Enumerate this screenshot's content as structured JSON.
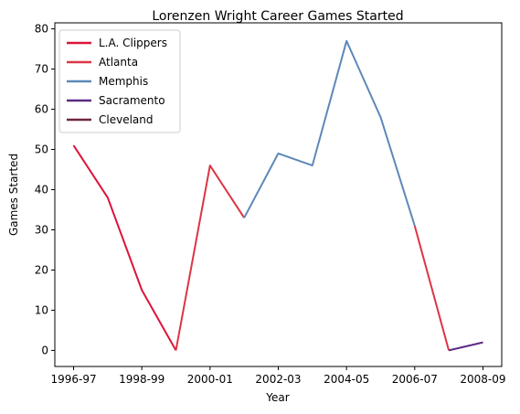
{
  "chart_data": {
    "type": "line",
    "title": "Lorenzen Wright Career Games Started",
    "xlabel": "Year",
    "ylabel": "Games Started",
    "x_ticks": [
      "1996-97",
      "1998-99",
      "2000-01",
      "2002-03",
      "2004-05",
      "2006-07",
      "2008-09"
    ],
    "y_ticks": [
      0,
      10,
      20,
      30,
      40,
      50,
      60,
      70,
      80
    ],
    "xlim": [
      "1996-97",
      "2008-09"
    ],
    "ylim": [
      0,
      80
    ],
    "legend_position": "upper-left",
    "grid": false,
    "series": [
      {
        "name": "L.A. Clippers",
        "color": "#dc143c",
        "points": [
          {
            "x": "1996-97",
            "y": 51
          },
          {
            "x": "1997-98",
            "y": 38
          },
          {
            "x": "1998-99",
            "y": 15
          },
          {
            "x": "1999-00",
            "y": 0
          }
        ]
      },
      {
        "name": "Atlanta",
        "color": "#dc3545",
        "points": [
          {
            "x": "1999-00",
            "y": 0
          },
          {
            "x": "2000-01",
            "y": 46
          },
          {
            "x": "2001-02",
            "y": 33
          }
        ]
      },
      {
        "name": "Memphis",
        "color": "#5e88b8",
        "points": [
          {
            "x": "2001-02",
            "y": 33
          },
          {
            "x": "2002-03",
            "y": 49
          },
          {
            "x": "2003-04",
            "y": 46
          },
          {
            "x": "2004-05",
            "y": 77
          },
          {
            "x": "2005-06",
            "y": 58
          },
          {
            "x": "2006-07",
            "y": 31
          }
        ]
      },
      {
        "name": "Atlanta",
        "color": "#dc3545",
        "in_legend": false,
        "points": [
          {
            "x": "2006-07",
            "y": 31
          },
          {
            "x": "2007-08",
            "y": 0
          }
        ]
      },
      {
        "name": "Sacramento",
        "color": "#5b2c83",
        "points": [
          {
            "x": "2007-08",
            "y": 0
          },
          {
            "x": "2008-09",
            "y": 2
          }
        ]
      },
      {
        "name": "Cleveland",
        "color": "#6f263d",
        "points": []
      }
    ]
  }
}
